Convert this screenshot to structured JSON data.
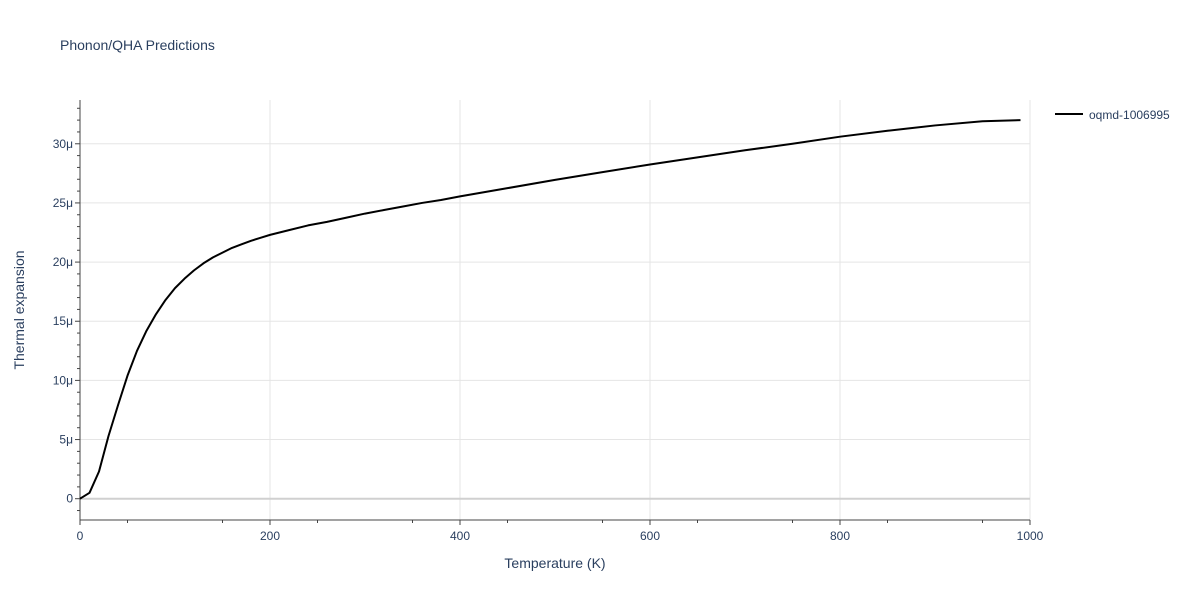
{
  "chart_data": {
    "type": "line",
    "title": "Phonon/QHA Predictions",
    "xlabel": "Temperature (K)",
    "ylabel": "Thermal expansion",
    "xlim": [
      0,
      1000
    ],
    "ylim": [
      -1.8e-06,
      3.37e-05
    ],
    "x_ticks": [
      0,
      200,
      400,
      600,
      800,
      1000
    ],
    "x_tick_labels": [
      "0",
      "200",
      "400",
      "600",
      "800",
      "1000"
    ],
    "y_ticks": [
      0,
      5e-06,
      1e-05,
      1.5e-05,
      2e-05,
      2.5e-05,
      3e-05
    ],
    "y_tick_labels": [
      "0",
      "5μ",
      "10μ",
      "15μ",
      "20μ",
      "25μ",
      "30μ"
    ],
    "grid": true,
    "legend_position": "top-right",
    "series": [
      {
        "name": "oqmd-1006995",
        "color": "#000000",
        "x": [
          0,
          10,
          20,
          30,
          40,
          50,
          60,
          70,
          80,
          90,
          100,
          110,
          120,
          130,
          140,
          150,
          160,
          170,
          180,
          190,
          200,
          220,
          240,
          260,
          280,
          300,
          320,
          340,
          360,
          380,
          400,
          450,
          500,
          550,
          600,
          650,
          700,
          750,
          800,
          850,
          900,
          950,
          990
        ],
        "y": [
          0,
          5e-07,
          2.3e-06,
          5.3e-06,
          7.9e-06,
          1.04e-05,
          1.25e-05,
          1.42e-05,
          1.56e-05,
          1.68e-05,
          1.78e-05,
          1.86e-05,
          1.93e-05,
          1.99e-05,
          2.04e-05,
          2.08e-05,
          2.12e-05,
          2.15e-05,
          2.18e-05,
          2.205e-05,
          2.23e-05,
          2.27e-05,
          2.31e-05,
          2.34e-05,
          2.375e-05,
          2.41e-05,
          2.44e-05,
          2.47e-05,
          2.5e-05,
          2.525e-05,
          2.555e-05,
          2.625e-05,
          2.695e-05,
          2.76e-05,
          2.825e-05,
          2.885e-05,
          2.945e-05,
          3e-05,
          3.06e-05,
          3.11e-05,
          3.155e-05,
          3.19e-05,
          3.2e-05
        ]
      }
    ]
  }
}
